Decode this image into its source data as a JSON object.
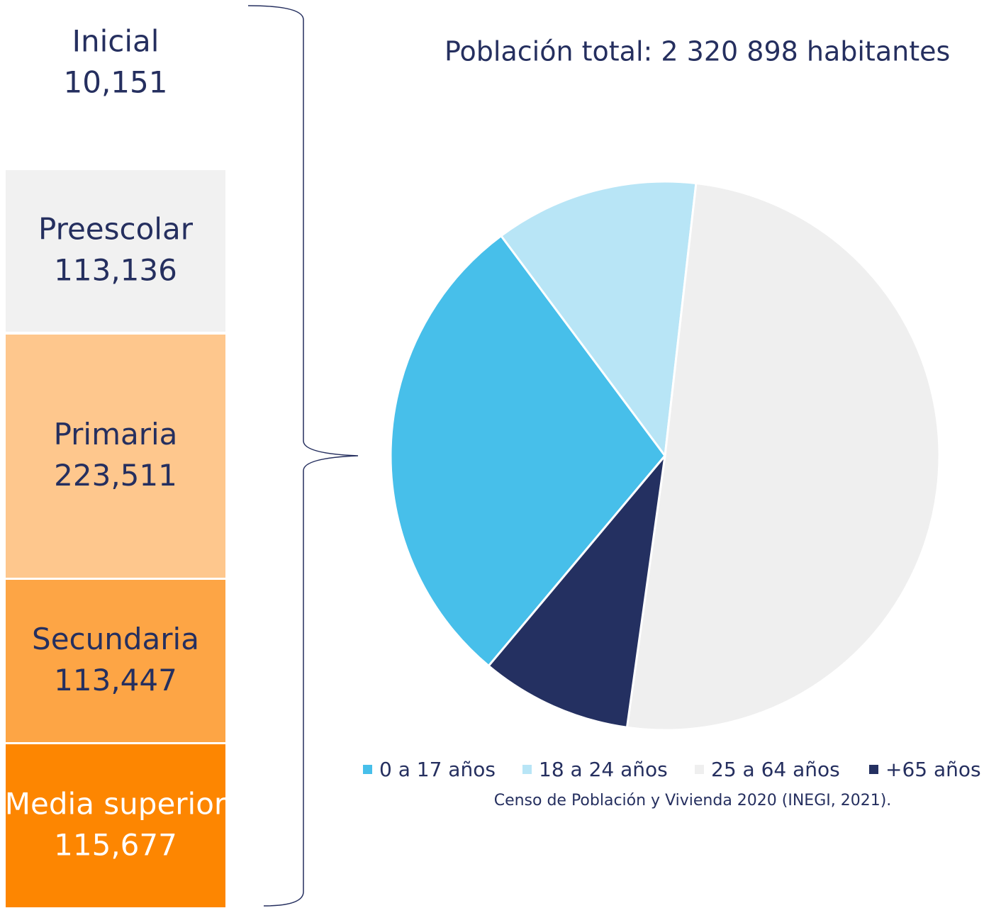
{
  "levels": [
    {
      "name": "Inicial",
      "value": "10,151",
      "color": "#ffffff"
    },
    {
      "name": "Preescolar",
      "value": "113,136",
      "color": "#f1f1f1"
    },
    {
      "name": "Primaria",
      "value": "223,511",
      "color": "#fec78d"
    },
    {
      "name": "Secundaria",
      "value": "113,447",
      "color": "#fda545"
    },
    {
      "name": "Media superior",
      "value": "115,677",
      "color": "#fd8601"
    }
  ],
  "chart_data": {
    "type": "pie",
    "title": "Población total: 2 320 898 habitantes",
    "categories": [
      "0 a 17 años",
      "18 a 24 años",
      "25 a 64 años",
      "+65 años"
    ],
    "values": [
      28.7,
      12.0,
      50.4,
      8.9
    ],
    "colors": [
      "#47bfea",
      "#b8e5f6",
      "#efefef",
      "#243061"
    ],
    "legend": "bottom"
  },
  "source": "Censo de Población y Vivienda 2020 (INEGI, 2021)."
}
